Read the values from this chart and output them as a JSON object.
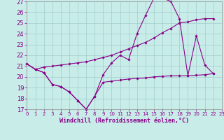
{
  "xlabel": "Windchill (Refroidissement éolien,°C)",
  "bg_color": "#c8ece8",
  "grid_color": "#a0cccc",
  "line_color": "#880088",
  "xlim_min": 0,
  "xlim_max": 23,
  "ylim_min": 17,
  "ylim_max": 27,
  "yticks": [
    17,
    18,
    19,
    20,
    21,
    22,
    23,
    24,
    25,
    26,
    27
  ],
  "xticks": [
    0,
    1,
    2,
    3,
    4,
    5,
    6,
    7,
    8,
    9,
    10,
    11,
    12,
    13,
    14,
    15,
    16,
    17,
    18,
    19,
    20,
    21,
    22,
    23
  ],
  "hours": [
    0,
    1,
    2,
    3,
    4,
    5,
    6,
    7,
    8,
    9,
    10,
    11,
    12,
    13,
    14,
    15,
    16,
    17,
    18,
    19,
    20,
    21,
    22
  ],
  "temp_vals": [
    21.2,
    20.7,
    20.4,
    19.3,
    19.1,
    18.6,
    17.8,
    17.0,
    18.2,
    20.2,
    21.3,
    22.0,
    21.6,
    24.0,
    25.7,
    27.3,
    27.3,
    27.0,
    25.4,
    20.1,
    23.8,
    21.1,
    20.3
  ],
  "min_vals": [
    21.2,
    20.7,
    20.4,
    19.3,
    19.1,
    18.6,
    17.8,
    17.0,
    18.2,
    19.5,
    19.6,
    19.7,
    19.8,
    19.85,
    19.9,
    20.0,
    20.05,
    20.1,
    20.1,
    20.1,
    20.15,
    20.2,
    20.3
  ],
  "max_vals": [
    21.2,
    20.7,
    20.9,
    21.0,
    21.1,
    21.2,
    21.3,
    21.4,
    21.6,
    21.8,
    22.0,
    22.3,
    22.6,
    22.9,
    23.2,
    23.6,
    24.1,
    24.5,
    25.0,
    25.1,
    25.3,
    25.4,
    25.4
  ],
  "tick_fontsize": 6,
  "xlabel_fontsize": 6
}
